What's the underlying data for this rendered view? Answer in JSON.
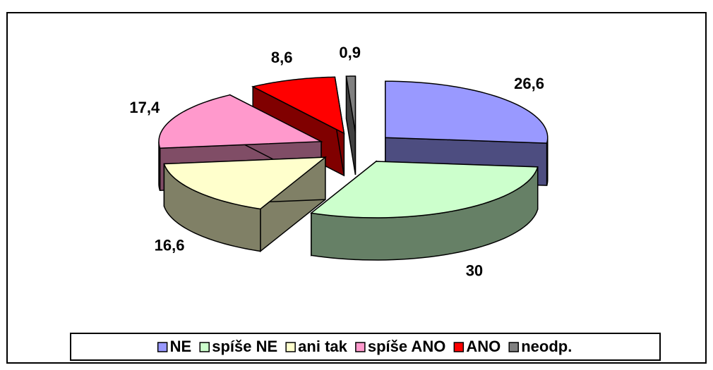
{
  "chart_data": {
    "type": "pie3d",
    "categories": [
      "NE",
      "spíše NE",
      "ani tak",
      "spíše ANO",
      "ANO",
      "neodp."
    ],
    "values": [
      26.6,
      30,
      16.6,
      17.4,
      8.6,
      0.9
    ],
    "value_labels": [
      "26,6",
      "30",
      "16,6",
      "17,4",
      "8,6",
      "0,9"
    ],
    "colors": [
      "#9999ff",
      "#ccffcc",
      "#ffffcc",
      "#ff99cc",
      "#ff0000",
      "#808080"
    ],
    "legend": "bottom"
  }
}
